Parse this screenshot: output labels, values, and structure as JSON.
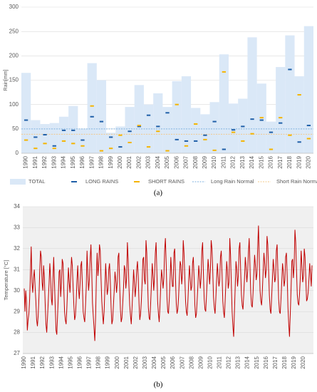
{
  "chart_data": [
    {
      "type": "bar",
      "y_label": "Rain[mm]",
      "caption": "(a)",
      "categories": [
        "1990",
        "1991",
        "1992",
        "1993",
        "1994",
        "1995",
        "1996",
        "1997",
        "1998",
        "1999",
        "2000",
        "2001",
        "2002",
        "2003",
        "2004",
        "2005",
        "2006",
        "2007",
        "2008",
        "2009",
        "2010",
        "2011",
        "2012",
        "2013",
        "2014",
        "2015",
        "2016",
        "2017",
        "2018",
        "2019",
        "2020"
      ],
      "series": [
        {
          "name": "TOTAL",
          "style": "bar",
          "color": "#dae8f7",
          "values": [
            165,
            68,
            60,
            62,
            75,
            97,
            50,
            185,
            150,
            42,
            55,
            95,
            140,
            100,
            123,
            95,
            148,
            158,
            93,
            80,
            105,
            203,
            102,
            112,
            238,
            143,
            65,
            177,
            242,
            158,
            261
          ]
        },
        {
          "name": "LONG RAINS",
          "style": "dash",
          "color": "#1f5fa8",
          "values": [
            68,
            33,
            38,
            15,
            47,
            47,
            27,
            75,
            65,
            33,
            13,
            45,
            55,
            78,
            55,
            83,
            28,
            25,
            25,
            37,
            65,
            8,
            48,
            55,
            70,
            68,
            43,
            62,
            172,
            23,
            57
          ]
        },
        {
          "name": "SHORT RAINS",
          "style": "dash",
          "color": "#f5b400",
          "values": [
            27,
            10,
            20,
            10,
            25,
            20,
            15,
            97,
            5,
            10,
            37,
            22,
            57,
            13,
            45,
            5,
            100,
            15,
            60,
            28,
            6,
            167,
            43,
            25,
            40,
            73,
            8,
            73,
            37,
            120,
            30
          ]
        }
      ],
      "reference_lines": [
        {
          "name": "Long Rain Normal",
          "value": 50,
          "color": "#7fb2e0"
        },
        {
          "name": "Short Rain Normal",
          "value": 39,
          "color": "#f3c98a"
        }
      ],
      "ylim": [
        0,
        300
      ],
      "yticks": [
        0,
        50,
        100,
        150,
        200,
        250,
        300
      ],
      "grid": true
    },
    {
      "type": "line",
      "y_label": "Temperature [°C]",
      "caption": "(b)",
      "color": "#c00000",
      "background": "#f0f0f0",
      "categories": [
        "1990",
        "1991",
        "1992",
        "1993",
        "1994",
        "1995",
        "1996",
        "1997",
        "1998",
        "1999",
        "2000",
        "2001",
        "2002",
        "2003",
        "2004",
        "2005",
        "2006",
        "2007",
        "2008",
        "2009",
        "2010",
        "2011",
        "2012",
        "2013",
        "2014",
        "2015",
        "2016",
        "2017",
        "2018",
        "2019",
        "2020"
      ],
      "values": [
        [
          30.1,
          29.0,
          30.0,
          29.4,
          28.1,
          28.6,
          28.9,
          29.6,
          30.8,
          32.1,
          30.4,
          29.9
        ],
        [
          30.6,
          31.0,
          30.2,
          29.5,
          28.6,
          28.3,
          28.8,
          29.7,
          30.9,
          31.9,
          31.6,
          30.4
        ],
        [
          30.0,
          31.2,
          30.6,
          29.4,
          28.4,
          28.0,
          28.7,
          29.5,
          30.3,
          31.3,
          30.6,
          29.6
        ],
        [
          29.3,
          30.5,
          31.6,
          30.4,
          29.2,
          28.1,
          27.9,
          28.8,
          29.8,
          30.9,
          31.0,
          29.7
        ],
        [
          30.4,
          31.5,
          31.3,
          30.1,
          29.0,
          28.6,
          28.4,
          29.2,
          30.2,
          31.1,
          30.4,
          29.9
        ],
        [
          30.8,
          31.6,
          31.2,
          30.2,
          29.3,
          28.6,
          28.8,
          29.5,
          30.5,
          31.2,
          30.1,
          29.6
        ],
        [
          30.3,
          31.2,
          31.4,
          30.2,
          29.0,
          28.7,
          28.5,
          29.3,
          30.2,
          31.9,
          30.8,
          30.0
        ],
        [
          30.5,
          31.5,
          32.2,
          31.0,
          29.4,
          28.8,
          28.2,
          27.6,
          28.7,
          30.6,
          31.8,
          30.7
        ],
        [
          31.2,
          32.2,
          31.9,
          30.6,
          29.5,
          28.9,
          28.4,
          29.0,
          30.1,
          31.3,
          30.5,
          29.8
        ],
        [
          30.1,
          31.0,
          31.3,
          30.4,
          29.2,
          28.4,
          28.6,
          29.3,
          30.0,
          30.9,
          30.5,
          29.9
        ],
        [
          30.4,
          31.6,
          31.8,
          30.3,
          29.1,
          28.5,
          28.7,
          29.4,
          30.1,
          31.2,
          31.0,
          30.1
        ],
        [
          30.6,
          32.3,
          31.5,
          30.2,
          29.3,
          28.8,
          28.4,
          29.2,
          30.0,
          31.0,
          30.4,
          29.7
        ],
        [
          30.2,
          31.0,
          31.4,
          30.6,
          29.4,
          28.6,
          28.9,
          29.5,
          30.4,
          31.5,
          31.6,
          30.5
        ],
        [
          30.3,
          32.4,
          31.8,
          30.5,
          29.2,
          28.7,
          28.6,
          29.4,
          30.3,
          31.3,
          30.7,
          30.0
        ],
        [
          30.7,
          31.8,
          32.3,
          30.9,
          29.5,
          28.9,
          28.5,
          29.3,
          30.2,
          31.0,
          30.6,
          30.1
        ],
        [
          30.6,
          31.9,
          32.5,
          31.3,
          29.7,
          29.0,
          28.9,
          29.6,
          30.5,
          31.6,
          30.8,
          30.2
        ],
        [
          30.2,
          31.8,
          32.0,
          30.6,
          29.4,
          28.9,
          29.1,
          29.7,
          30.6,
          31.4,
          31.2,
          30.3
        ],
        [
          30.8,
          32.4,
          31.8,
          30.7,
          29.5,
          29.0,
          28.8,
          29.5,
          30.4,
          31.2,
          30.6,
          30.0
        ],
        [
          30.2,
          31.3,
          31.6,
          30.6,
          29.3,
          28.7,
          28.9,
          29.6,
          30.3,
          31.2,
          30.7,
          30.1
        ],
        [
          30.6,
          31.9,
          32.3,
          30.8,
          29.6,
          29.1,
          29.0,
          29.8,
          30.6,
          31.5,
          31.0,
          30.3
        ],
        [
          30.9,
          32.4,
          32.0,
          31.0,
          29.7,
          29.2,
          28.9,
          29.6,
          30.5,
          31.3,
          30.7,
          30.2
        ],
        [
          30.5,
          31.6,
          31.9,
          30.8,
          29.5,
          29.0,
          28.7,
          29.5,
          30.4,
          31.4,
          30.9,
          30.1
        ],
        [
          30.4,
          32.5,
          31.7,
          30.3,
          29.0,
          28.3,
          27.8,
          29.0,
          30.2,
          31.4,
          31.0,
          30.2
        ],
        [
          30.7,
          32.0,
          32.3,
          31.0,
          29.8,
          29.3,
          29.1,
          29.8,
          30.6,
          31.6,
          31.1,
          30.4
        ],
        [
          30.9,
          31.8,
          32.5,
          31.2,
          29.9,
          29.3,
          29.2,
          29.9,
          30.8,
          31.7,
          31.2,
          30.5
        ],
        [
          30.8,
          32.1,
          33.1,
          31.5,
          30.0,
          29.5,
          29.3,
          30.0,
          30.9,
          31.8,
          31.3,
          30.6
        ],
        [
          31.0,
          32.6,
          32.2,
          31.0,
          29.8,
          29.1,
          28.9,
          29.7,
          30.6,
          31.5,
          31.0,
          30.4
        ],
        [
          30.6,
          31.9,
          32.2,
          30.9,
          29.6,
          29.0,
          28.9,
          29.6,
          30.4,
          31.3,
          30.9,
          30.2
        ],
        [
          30.5,
          31.6,
          31.8,
          30.7,
          29.2,
          28.4,
          27.8,
          28.9,
          30.1,
          31.4,
          31.5,
          30.6
        ],
        [
          31.2,
          32.9,
          32.3,
          31.0,
          29.8,
          29.4,
          29.3,
          29.9,
          30.7,
          31.9,
          31.2,
          30.4
        ],
        [
          30.7,
          32.0,
          31.6,
          30.6,
          29.5,
          29.6,
          29.9,
          30.5,
          31.3,
          30.8,
          30.2,
          31.2
        ]
      ],
      "ylim": [
        27,
        34
      ],
      "yticks": [
        27,
        28,
        29,
        30,
        31,
        32,
        33,
        34
      ],
      "grid": true
    }
  ]
}
